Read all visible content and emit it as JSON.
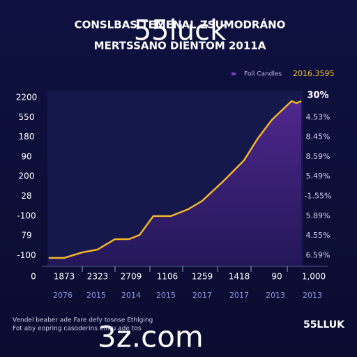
{
  "chart_data": {
    "type": "line",
    "title": "CONSLBAS TEMENAL ZSUMODRÁNO",
    "subtitle": "MERTSSANO DIENTOM 2011A",
    "watermark": "55luck",
    "watermark_bottom": "3z.com",
    "legend": [
      {
        "name": "Foll Candles",
        "color": "#7a3fc0"
      },
      {
        "name": "2016.3595",
        "color": "#f2c12e"
      }
    ],
    "left_labels": [
      "2200",
      "550",
      "180",
      "90",
      "200",
      "28",
      "-100",
      "79",
      "-100"
    ],
    "right_labels": [
      "30%",
      "4.53%",
      "8.45%",
      "8.59%",
      "5.49%",
      "-1.55%",
      "5.89%",
      "4.55%",
      "6.59%"
    ],
    "bottom_labels": [
      "0",
      "1873",
      "2323",
      "2709",
      "1106",
      "1259",
      "1418",
      "90",
      "1,000"
    ],
    "year_labels": [
      "2076",
      "2015",
      "2014",
      "2015",
      "2017",
      "2017",
      "2013",
      "2013"
    ],
    "footer": [
      "Vendel beaber ade Fare defy tosnse Ethlging",
      "Fot aby eopring casoderins emtu ade tos"
    ],
    "brand": "55LLUK",
    "series": [
      {
        "name": "2016.3595",
        "color": "#f2b52a",
        "x": [
          0.5,
          6.5,
          13.6,
          19.6,
          22.3,
          26.4,
          31.9,
          36,
          41.4,
          48.2,
          55,
          60.5,
          68.7,
          76.8,
          82.3,
          87.7,
          95.4,
          97.3,
          99.2
        ],
        "values": [
          4.2,
          4.2,
          7.5,
          9.2,
          11.7,
          15.4,
          15.4,
          17.9,
          29.2,
          29.2,
          33.3,
          38.3,
          50,
          62.5,
          75.8,
          86.7,
          97.9,
          96.7,
          97.9
        ]
      }
    ],
    "xlim": [
      0,
      100
    ],
    "ylim": [
      0,
      100
    ]
  }
}
